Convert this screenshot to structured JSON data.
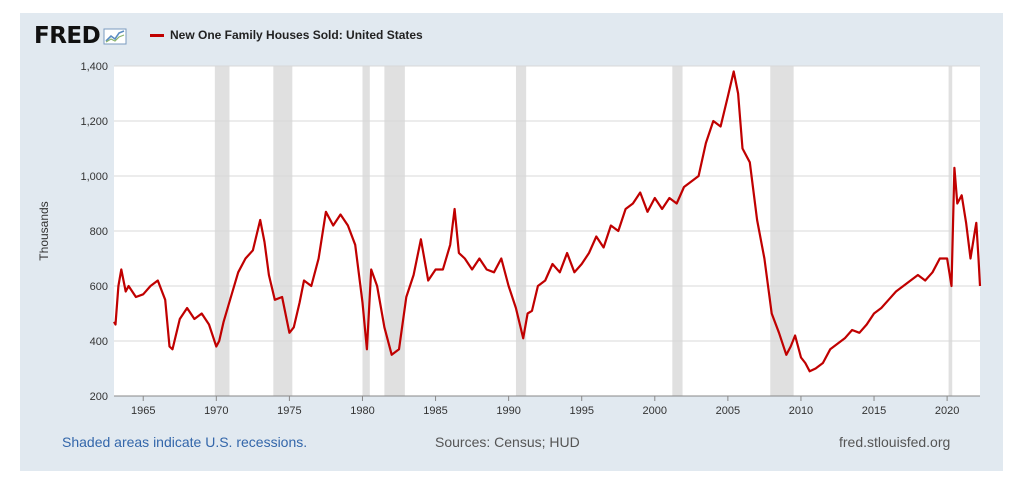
{
  "header": {
    "logo": "FRED",
    "legend_label": "New One Family Houses Sold: United States"
  },
  "footer": {
    "recessions_note": "Shaded areas indicate U.S. recessions.",
    "sources": "Sources: Census; HUD",
    "site": "fred.stlouisfed.org"
  },
  "colors": {
    "line": "#c00000",
    "recession": "#e0e0e0",
    "frame": "#e1e9f0",
    "link": "#3366aa"
  },
  "chart_data": {
    "type": "line",
    "ylabel": "Thousands",
    "ylim": [
      200,
      1400
    ],
    "yticks": [
      200,
      400,
      600,
      800,
      1000,
      1200,
      1400
    ],
    "ytick_labels": [
      "200",
      "400",
      "600",
      "800",
      "1,000",
      "1,200",
      "1,400"
    ],
    "xlim": [
      1963.0,
      2022.25
    ],
    "xticks": [
      1965,
      1970,
      1975,
      1980,
      1985,
      1990,
      1995,
      2000,
      2005,
      2010,
      2015,
      2020
    ],
    "grid": true,
    "recessions": [
      [
        1969.9,
        1970.9
      ],
      [
        1973.9,
        1975.2
      ],
      [
        1980.0,
        1980.5
      ],
      [
        1981.5,
        1982.9
      ],
      [
        1990.5,
        1991.2
      ],
      [
        2001.2,
        2001.9
      ],
      [
        2007.9,
        2009.5
      ],
      [
        2020.1,
        2020.35
      ]
    ],
    "series": [
      {
        "x": [
          1963.0,
          1963.1,
          1963.3,
          1963.5,
          1963.8,
          1964.0,
          1964.5,
          1965.0,
          1965.5,
          1966.0,
          1966.5,
          1966.8,
          1967.0,
          1967.5,
          1968.0,
          1968.5,
          1969.0,
          1969.5,
          1970.0,
          1970.2,
          1970.5,
          1971.0,
          1971.5,
          1972.0,
          1972.5,
          1973.0,
          1973.3,
          1973.6,
          1974.0,
          1974.5,
          1975.0,
          1975.3,
          1975.7,
          1976.0,
          1976.5,
          1977.0,
          1977.5,
          1978.0,
          1978.5,
          1979.0,
          1979.5,
          1980.0,
          1980.3,
          1980.6,
          1981.0,
          1981.5,
          1982.0,
          1982.5,
          1983.0,
          1983.5,
          1984.0,
          1984.5,
          1985.0,
          1985.5,
          1986.0,
          1986.3,
          1986.6,
          1987.0,
          1987.5,
          1988.0,
          1988.5,
          1989.0,
          1989.5,
          1990.0,
          1990.5,
          1991.0,
          1991.3,
          1991.6,
          1992.0,
          1992.5,
          1993.0,
          1993.5,
          1994.0,
          1994.5,
          1995.0,
          1995.5,
          1996.0,
          1996.5,
          1997.0,
          1997.5,
          1998.0,
          1998.5,
          1999.0,
          1999.5,
          2000.0,
          2000.5,
          2001.0,
          2001.5,
          2002.0,
          2002.5,
          2003.0,
          2003.5,
          2004.0,
          2004.5,
          2005.0,
          2005.4,
          2005.7,
          2006.0,
          2006.5,
          2007.0,
          2007.5,
          2008.0,
          2008.5,
          2009.0,
          2009.3,
          2009.6,
          2010.0,
          2010.3,
          2010.6,
          2011.0,
          2011.5,
          2012.0,
          2012.5,
          2013.0,
          2013.5,
          2014.0,
          2014.5,
          2015.0,
          2015.5,
          2016.0,
          2016.5,
          2017.0,
          2017.5,
          2018.0,
          2018.5,
          2019.0,
          2019.5,
          2020.0,
          2020.3,
          2020.5,
          2020.7,
          2021.0,
          2021.3,
          2021.6,
          2021.9,
          2022.0,
          2022.15,
          2022.25
        ],
        "values": [
          470,
          460,
          600,
          660,
          580,
          600,
          560,
          570,
          600,
          620,
          550,
          380,
          370,
          480,
          520,
          480,
          500,
          460,
          380,
          400,
          470,
          560,
          650,
          700,
          730,
          840,
          760,
          640,
          550,
          560,
          430,
          450,
          540,
          620,
          600,
          700,
          870,
          820,
          860,
          820,
          750,
          540,
          370,
          660,
          600,
          450,
          350,
          370,
          560,
          640,
          770,
          620,
          660,
          660,
          750,
          880,
          720,
          700,
          660,
          700,
          660,
          650,
          700,
          600,
          520,
          410,
          500,
          510,
          600,
          620,
          680,
          650,
          720,
          650,
          680,
          720,
          780,
          740,
          820,
          800,
          880,
          900,
          940,
          870,
          920,
          880,
          920,
          900,
          960,
          980,
          1000,
          1120,
          1200,
          1180,
          1290,
          1380,
          1300,
          1100,
          1050,
          840,
          700,
          500,
          430,
          350,
          380,
          420,
          340,
          320,
          290,
          300,
          320,
          370,
          390,
          410,
          440,
          430,
          460,
          500,
          520,
          550,
          580,
          600,
          620,
          640,
          620,
          650,
          700,
          700,
          600,
          1030,
          900,
          930,
          830,
          700,
          800,
          830,
          700,
          600
        ]
      }
    ]
  }
}
